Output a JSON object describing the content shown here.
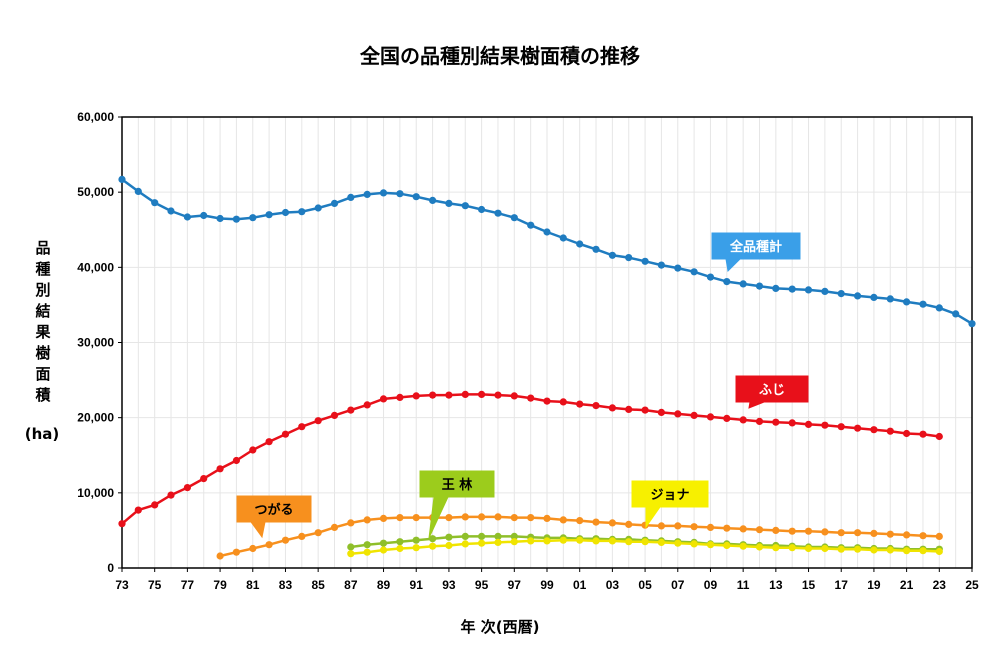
{
  "chart_data": {
    "type": "line",
    "title": "全国の品種別結果樹面積の推移",
    "xlabel": "年 次(西暦)",
    "ylabel": "品種別結果樹面積",
    "ylabel_unit": "(ha)",
    "ylim": [
      0,
      60000
    ],
    "y_ticks": [
      "0",
      "10,000",
      "20,000",
      "30,000",
      "40,000",
      "50,000",
      "60,000"
    ],
    "x_ticks": [
      "73",
      "75",
      "77",
      "79",
      "81",
      "83",
      "85",
      "87",
      "89",
      "91",
      "93",
      "95",
      "97",
      "99",
      "01",
      "03",
      "05",
      "07",
      "09",
      "11",
      "13",
      "15",
      "17",
      "19",
      "21",
      "23",
      "25"
    ],
    "grid": true,
    "series": [
      {
        "name": "全品種計",
        "color": "#1f7cc0",
        "label_color": "#3a9fe8",
        "label_text_color": "#ffffff",
        "start_year": 1973,
        "values": [
          51700,
          50100,
          48600,
          47500,
          46700,
          46900,
          46500,
          46400,
          46600,
          47000,
          47300,
          47400,
          47900,
          48500,
          49300,
          49700,
          49900,
          49800,
          49400,
          48900,
          48500,
          48200,
          47700,
          47200,
          46600,
          45600,
          44700,
          43900,
          43100,
          42400,
          41600,
          41300,
          40800,
          40300,
          39900,
          39400,
          38700,
          38100,
          37800,
          37500,
          37200,
          37100,
          37000,
          36800,
          36500,
          36200,
          36000,
          35800,
          35400,
          35100,
          34600,
          33800,
          32500
        ]
      },
      {
        "name": "ふじ",
        "color": "#e8101a",
        "label_color": "#e8101a",
        "label_text_color": "#ffffff",
        "start_year": 1973,
        "values": [
          5900,
          7700,
          8400,
          9700,
          10700,
          11900,
          13200,
          14300,
          15700,
          16800,
          17800,
          18800,
          19600,
          20300,
          21000,
          21700,
          22500,
          22700,
          22900,
          23000,
          23000,
          23100,
          23100,
          23000,
          22900,
          22600,
          22200,
          22100,
          21800,
          21600,
          21300,
          21100,
          21000,
          20700,
          20500,
          20300,
          20100,
          19900,
          19700,
          19500,
          19400,
          19300,
          19100,
          19000,
          18800,
          18600,
          18400,
          18200,
          17900,
          17800,
          17500
        ]
      },
      {
        "name": "つがる",
        "color": "#f7901e",
        "label_color": "#f7901e",
        "label_text_color": "#000000",
        "start_year": 1979,
        "values": [
          1600,
          2100,
          2600,
          3100,
          3700,
          4200,
          4700,
          5400,
          6000,
          6400,
          6600,
          6700,
          6700,
          6700,
          6700,
          6800,
          6800,
          6800,
          6700,
          6700,
          6600,
          6400,
          6300,
          6100,
          6000,
          5800,
          5700,
          5600,
          5600,
          5500,
          5400,
          5300,
          5200,
          5100,
          5000,
          4900,
          4900,
          4800,
          4700,
          4700,
          4600,
          4500,
          4400,
          4300,
          4200
        ]
      },
      {
        "name": "王 林",
        "color": "#8fbf2a",
        "label_color": "#9ccc1c",
        "label_text_color": "#000000",
        "start_year": 1987,
        "values": [
          2800,
          3100,
          3300,
          3500,
          3700,
          3900,
          4100,
          4200,
          4200,
          4200,
          4200,
          4100,
          4000,
          4000,
          3900,
          3900,
          3800,
          3800,
          3700,
          3600,
          3500,
          3400,
          3200,
          3200,
          3100,
          3000,
          3000,
          2900,
          2800,
          2800,
          2700,
          2700,
          2600,
          2600,
          2500,
          2500,
          2500
        ]
      },
      {
        "name": "ジョナ",
        "color": "#f0e400",
        "label_color": "#f7f000",
        "label_text_color": "#000000",
        "start_year": 1987,
        "values": [
          1900,
          2100,
          2400,
          2600,
          2700,
          2900,
          3000,
          3200,
          3300,
          3400,
          3500,
          3600,
          3600,
          3700,
          3700,
          3600,
          3600,
          3500,
          3500,
          3400,
          3300,
          3200,
          3100,
          3000,
          2900,
          2800,
          2700,
          2700,
          2600,
          2600,
          2500,
          2500,
          2400,
          2400,
          2300,
          2300,
          2200
        ]
      }
    ]
  }
}
